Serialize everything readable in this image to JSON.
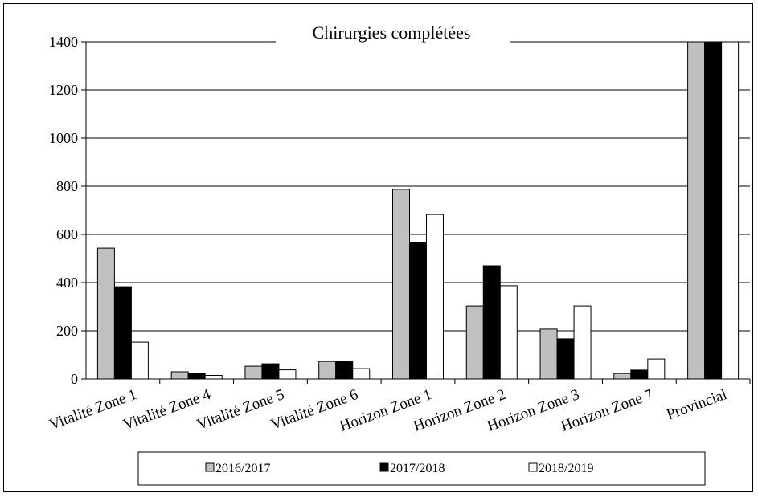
{
  "chart_data": {
    "type": "bar",
    "title": "Chirurgies complétées",
    "xlabel": "",
    "ylabel": "",
    "ylim": [
      0,
      1400
    ],
    "yticks": [
      0,
      200,
      400,
      600,
      800,
      1000,
      1200,
      1400
    ],
    "grid": "horizontal",
    "legend_position": "bottom",
    "categories": [
      "Vitalité Zone 1",
      "Vitalité Zone 4",
      "Vitalité Zone 5",
      "Vitalité Zone 6",
      "Horizon Zone 1",
      "Horizon Zone 2",
      "Horizon Zone 3",
      "Horizon Zone 7",
      "Provincial"
    ],
    "series": [
      {
        "name": "2016/2017",
        "color": "#c0c0c0",
        "values": [
          543,
          30,
          53,
          73,
          787,
          303,
          207,
          23,
          1400
        ]
      },
      {
        "name": "2017/2018",
        "color": "#000000",
        "values": [
          383,
          23,
          63,
          75,
          565,
          470,
          167,
          37,
          1400
        ]
      },
      {
        "name": "2018/2019",
        "color": "#ffffff",
        "values": [
          153,
          15,
          38,
          43,
          683,
          387,
          303,
          83,
          1400
        ]
      }
    ]
  }
}
